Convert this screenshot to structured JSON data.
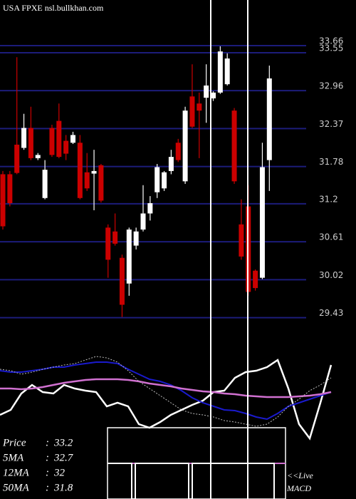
{
  "chart_data": [
    {
      "type": "candlestick",
      "title": "USA FPXE nsl.bullkhan.com",
      "open": [
        31.66,
        31.66,
        32.12,
        32.07,
        32.38,
        31.91,
        31.29,
        32.38,
        32.49,
        32.18,
        32.15,
        32.15,
        31.69,
        31.67,
        31.8,
        30.83,
        30.77,
        30.36,
        29.96,
        30.55,
        30.8,
        31.05,
        31.38,
        31.44,
        31.71,
        32.15,
        31.55,
        32.87,
        32.76,
        32.85,
        32.84,
        32.93,
        33.06,
        32.65,
        30.88,
        31.16,
        30.16,
        30.05,
        31.88
      ],
      "high": [
        31.71,
        31.71,
        33.48,
        32.6,
        32.71,
        31.99,
        31.88,
        32.43,
        32.76,
        32.27,
        32.32,
        32.27,
        31.99,
        32.04,
        31.82,
        30.88,
        31.05,
        30.41,
        30.83,
        30.83,
        31.49,
        31.32,
        31.82,
        31.71,
        32.04,
        32.21,
        32.71,
        33.37,
        32.93,
        33.37,
        32.95,
        33.65,
        33.54,
        32.69,
        31.27,
        31.49,
        30.18,
        32.15,
        33.35
      ],
      "low": [
        30.8,
        31.16,
        31.66,
        32.04,
        31.88,
        31.88,
        31.27,
        31.93,
        31.91,
        31.88,
        32.13,
        31.27,
        31.4,
        31.1,
        31.22,
        30.05,
        30.55,
        29.44,
        29.77,
        30.49,
        30.77,
        30.94,
        31.29,
        31.4,
        31.66,
        31.85,
        31.51,
        32.38,
        31.91,
        32.46,
        32.8,
        32.91,
        33.04,
        31.51,
        30.33,
        29.77,
        29.85,
        30.03,
        31.4
      ],
      "close": [
        30.85,
        31.21,
        31.68,
        32.38,
        31.91,
        31.96,
        31.73,
        31.96,
        31.93,
        31.98,
        32.27,
        31.29,
        31.44,
        31.71,
        31.25,
        30.33,
        30.58,
        29.63,
        30.8,
        30.77,
        31.05,
        31.21,
        31.77,
        31.69,
        31.93,
        31.88,
        32.65,
        32.4,
        32.65,
        33.04,
        32.93,
        33.57,
        33.46,
        31.55,
        30.38,
        29.83,
        29.89,
        31.77,
        33.15
      ],
      "up_color": "#ffffff",
      "down_color": "#cc0000",
      "grid_color": "#1c1c7a",
      "ylim": [
        29.27,
        34.37
      ],
      "yticks": [
        33.66,
        33.55,
        32.96,
        32.37,
        31.78,
        31.2,
        30.61,
        30.02,
        29.43
      ],
      "grid": true
    },
    {
      "type": "line",
      "ylim": [
        0,
        100
      ],
      "series": [
        {
          "color": "#ffffff",
          "width": 2.5,
          "dash": false,
          "values": [
            31.7,
            37.5,
            56.7,
            66.7,
            58.3,
            56.7,
            66.7,
            62.5,
            60,
            58.3,
            41.7,
            45.8,
            41.7,
            20.8,
            16.7,
            23.3,
            31.7,
            37.5,
            43.3,
            48.3,
            58.3,
            60,
            75,
            81.7,
            83.3,
            87.5,
            95.8,
            62.5,
            20.8,
            4.2,
            45.8,
            90
          ]
        },
        {
          "color": "#1a1acc",
          "width": 2,
          "dash": false,
          "values": [
            83.3,
            81.7,
            81.7,
            83.3,
            85,
            87.5,
            87.5,
            90,
            91.7,
            93.3,
            93.3,
            91.7,
            85,
            79.2,
            73.3,
            70.8,
            66.7,
            60,
            51.7,
            45.8,
            41.7,
            37.5,
            36.7,
            33.3,
            29.2,
            26.7,
            33.3,
            41.7,
            45.8,
            50,
            54.2,
            58.3
          ]
        },
        {
          "color": "#d070d0",
          "width": 2.5,
          "dash": false,
          "values": [
            62.5,
            62.5,
            61.7,
            62.5,
            64.2,
            66.7,
            69.2,
            70.8,
            72.5,
            73.3,
            73.3,
            73.3,
            72.5,
            70.8,
            68.3,
            66.7,
            65,
            62.5,
            60.8,
            59.2,
            58.3,
            56.7,
            55.8,
            54.2,
            53.3,
            52.5,
            52.5,
            52.5,
            53.3,
            54.2,
            55.8,
            58.3
          ]
        },
        {
          "color": "#bbbbbb",
          "width": 1,
          "dash": true,
          "values": [
            85,
            83.3,
            79.2,
            81.7,
            85,
            87.5,
            90,
            91.7,
            95.8,
            100,
            98.3,
            93.3,
            83.3,
            70.8,
            62.5,
            54.2,
            45.8,
            37.5,
            33.3,
            31.7,
            29.2,
            25,
            23.3,
            20.8,
            18.3,
            20.8,
            29.2,
            41.7,
            50,
            60,
            66.7,
            75
          ]
        }
      ]
    }
  ],
  "stats": [
    {
      "label": "Price",
      "sep": ":",
      "value": 33.2
    },
    {
      "label": "5MA",
      "sep": ":",
      "value": 32.7
    },
    {
      "label": "12MA",
      "sep": ":",
      "value": 32
    },
    {
      "label": "50MA",
      "sep": ":",
      "value": 31.8
    }
  ],
  "macd_label": [
    "<<Live",
    "MACD"
  ]
}
